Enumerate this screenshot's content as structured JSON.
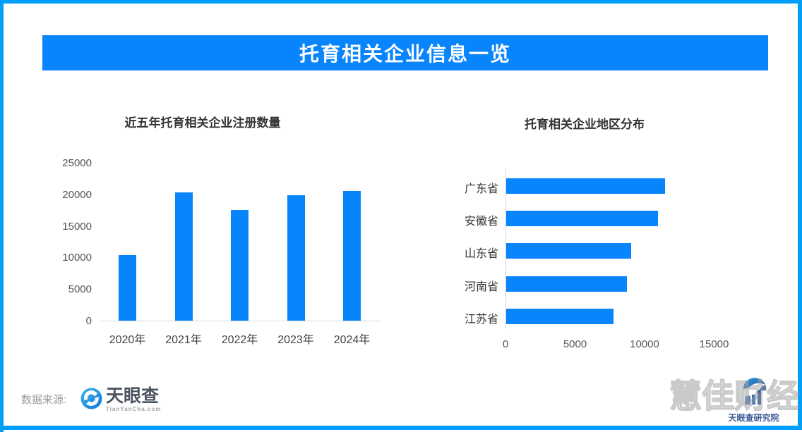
{
  "page": {
    "header_title": "托育相关企业信息一览",
    "header_bg": "#0885FC",
    "frame_color": "#029EF8"
  },
  "chart_data": [
    {
      "type": "bar",
      "title": "近五年托育相关企业注册数量",
      "categories": [
        "2020年",
        "2021年",
        "2022年",
        "2023年",
        "2024年"
      ],
      "values": [
        10400,
        20300,
        17500,
        19900,
        20500
      ],
      "yticks": [
        25000,
        20000,
        15000,
        10000,
        5000,
        0
      ],
      "ylim": [
        0,
        25000
      ],
      "grid": false,
      "bar_color": "#0885FC"
    },
    {
      "type": "bar-horizontal",
      "title": "托育相关企业地区分布",
      "categories": [
        "广东省",
        "安徽省",
        "山东省",
        "河南省",
        "江苏省"
      ],
      "values": [
        11400,
        10900,
        9000,
        8700,
        7700
      ],
      "xticks": [
        0,
        5000,
        10000,
        15000
      ],
      "xlim": [
        0,
        20000
      ],
      "grid": false,
      "bar_color": "#0885FC"
    }
  ],
  "footer": {
    "source_label": "数据来源:",
    "tianyancha_name": "天眼查",
    "tianyancha_sub": "TianYanCha.com",
    "research_institute": "天眼查研究院",
    "watermark": "慧佳财经"
  }
}
